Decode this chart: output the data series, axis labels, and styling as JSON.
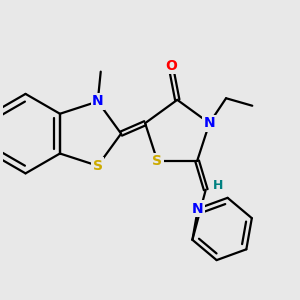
{
  "bg_color": "#e8e8e8",
  "atom_colors": {
    "N": "#0000ff",
    "O": "#ff0000",
    "S": "#ccaa00",
    "H": "#008080",
    "C": "#000000"
  },
  "bond_color": "#000000",
  "linewidth": 1.6,
  "fontsize": 10
}
